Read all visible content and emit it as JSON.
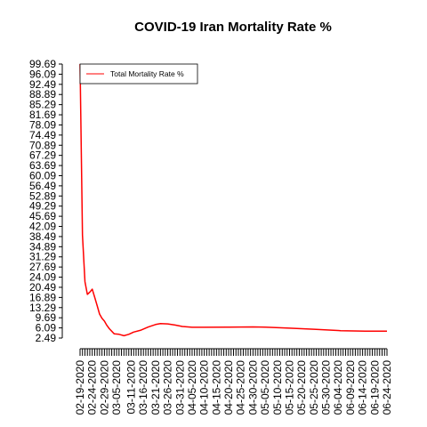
{
  "chart_data": {
    "type": "line",
    "title": "COVID-19 Iran Mortality Rate %",
    "xlabel": "",
    "ylabel": "",
    "ylim": [
      2.49,
      99.69
    ],
    "yticks": [
      "2.49",
      "6.09",
      "9.69",
      "13.29",
      "16.89",
      "20.49",
      "24.09",
      "27.69",
      "31.29",
      "34.89",
      "38.49",
      "42.09",
      "45.69",
      "49.29",
      "52.89",
      "56.49",
      "60.09",
      "63.69",
      "67.29",
      "70.89",
      "74.49",
      "78.09",
      "81.69",
      "85.29",
      "88.89",
      "92.49",
      "96.09",
      "99.69"
    ],
    "xticks": [
      "02-19-2020",
      "02-24-2020",
      "02-29-2020",
      "03-05-2020",
      "03-11-2020",
      "03-16-2020",
      "03-21-2020",
      "03-26-2020",
      "03-31-2020",
      "04-05-2020",
      "04-10-2020",
      "04-15-2020",
      "04-20-2020",
      "04-25-2020",
      "04-30-2020",
      "05-05-2020",
      "05-10-2020",
      "05-15-2020",
      "05-20-2020",
      "05-25-2020",
      "05-30-2020",
      "06-04-2020",
      "06-09-2020",
      "06-14-2020",
      "06-19-2020",
      "06-24-2020"
    ],
    "x_start": "02-19-2020",
    "x_end": "06-24-2020",
    "legend": {
      "position": "top-left",
      "entries": [
        "Total Mortality Rate %"
      ]
    },
    "colors": {
      "series": "#ff0000"
    },
    "series": [
      {
        "name": "Total Mortality Rate %",
        "points": [
          [
            "02-19-2020",
            100.0
          ],
          [
            "02-20-2020",
            39.0
          ],
          [
            "02-21-2020",
            22.5
          ],
          [
            "02-22-2020",
            18.0
          ],
          [
            "02-23-2020",
            18.8
          ],
          [
            "02-24-2020",
            19.8
          ],
          [
            "02-25-2020",
            17.0
          ],
          [
            "02-26-2020",
            14.0
          ],
          [
            "02-27-2020",
            11.0
          ],
          [
            "02-28-2020",
            9.5
          ],
          [
            "02-29-2020",
            8.5
          ],
          [
            "03-01-2020",
            7.0
          ],
          [
            "03-02-2020",
            5.8
          ],
          [
            "03-04-2020",
            4.0
          ],
          [
            "03-06-2020",
            3.8
          ],
          [
            "03-08-2020",
            3.3
          ],
          [
            "03-10-2020",
            3.8
          ],
          [
            "03-12-2020",
            4.6
          ],
          [
            "03-15-2020",
            5.3
          ],
          [
            "03-18-2020",
            6.4
          ],
          [
            "03-21-2020",
            7.3
          ],
          [
            "03-23-2020",
            7.6
          ],
          [
            "03-26-2020",
            7.5
          ],
          [
            "03-29-2020",
            7.1
          ],
          [
            "04-01-2020",
            6.6
          ],
          [
            "04-05-2020",
            6.3
          ],
          [
            "04-10-2020",
            6.3
          ],
          [
            "04-20-2020",
            6.35
          ],
          [
            "04-30-2020",
            6.45
          ],
          [
            "05-05-2020",
            6.35
          ],
          [
            "05-15-2020",
            6.0
          ],
          [
            "05-25-2020",
            5.6
          ],
          [
            "06-05-2020",
            5.1
          ],
          [
            "06-15-2020",
            4.95
          ],
          [
            "06-24-2020",
            4.95
          ]
        ]
      }
    ]
  }
}
